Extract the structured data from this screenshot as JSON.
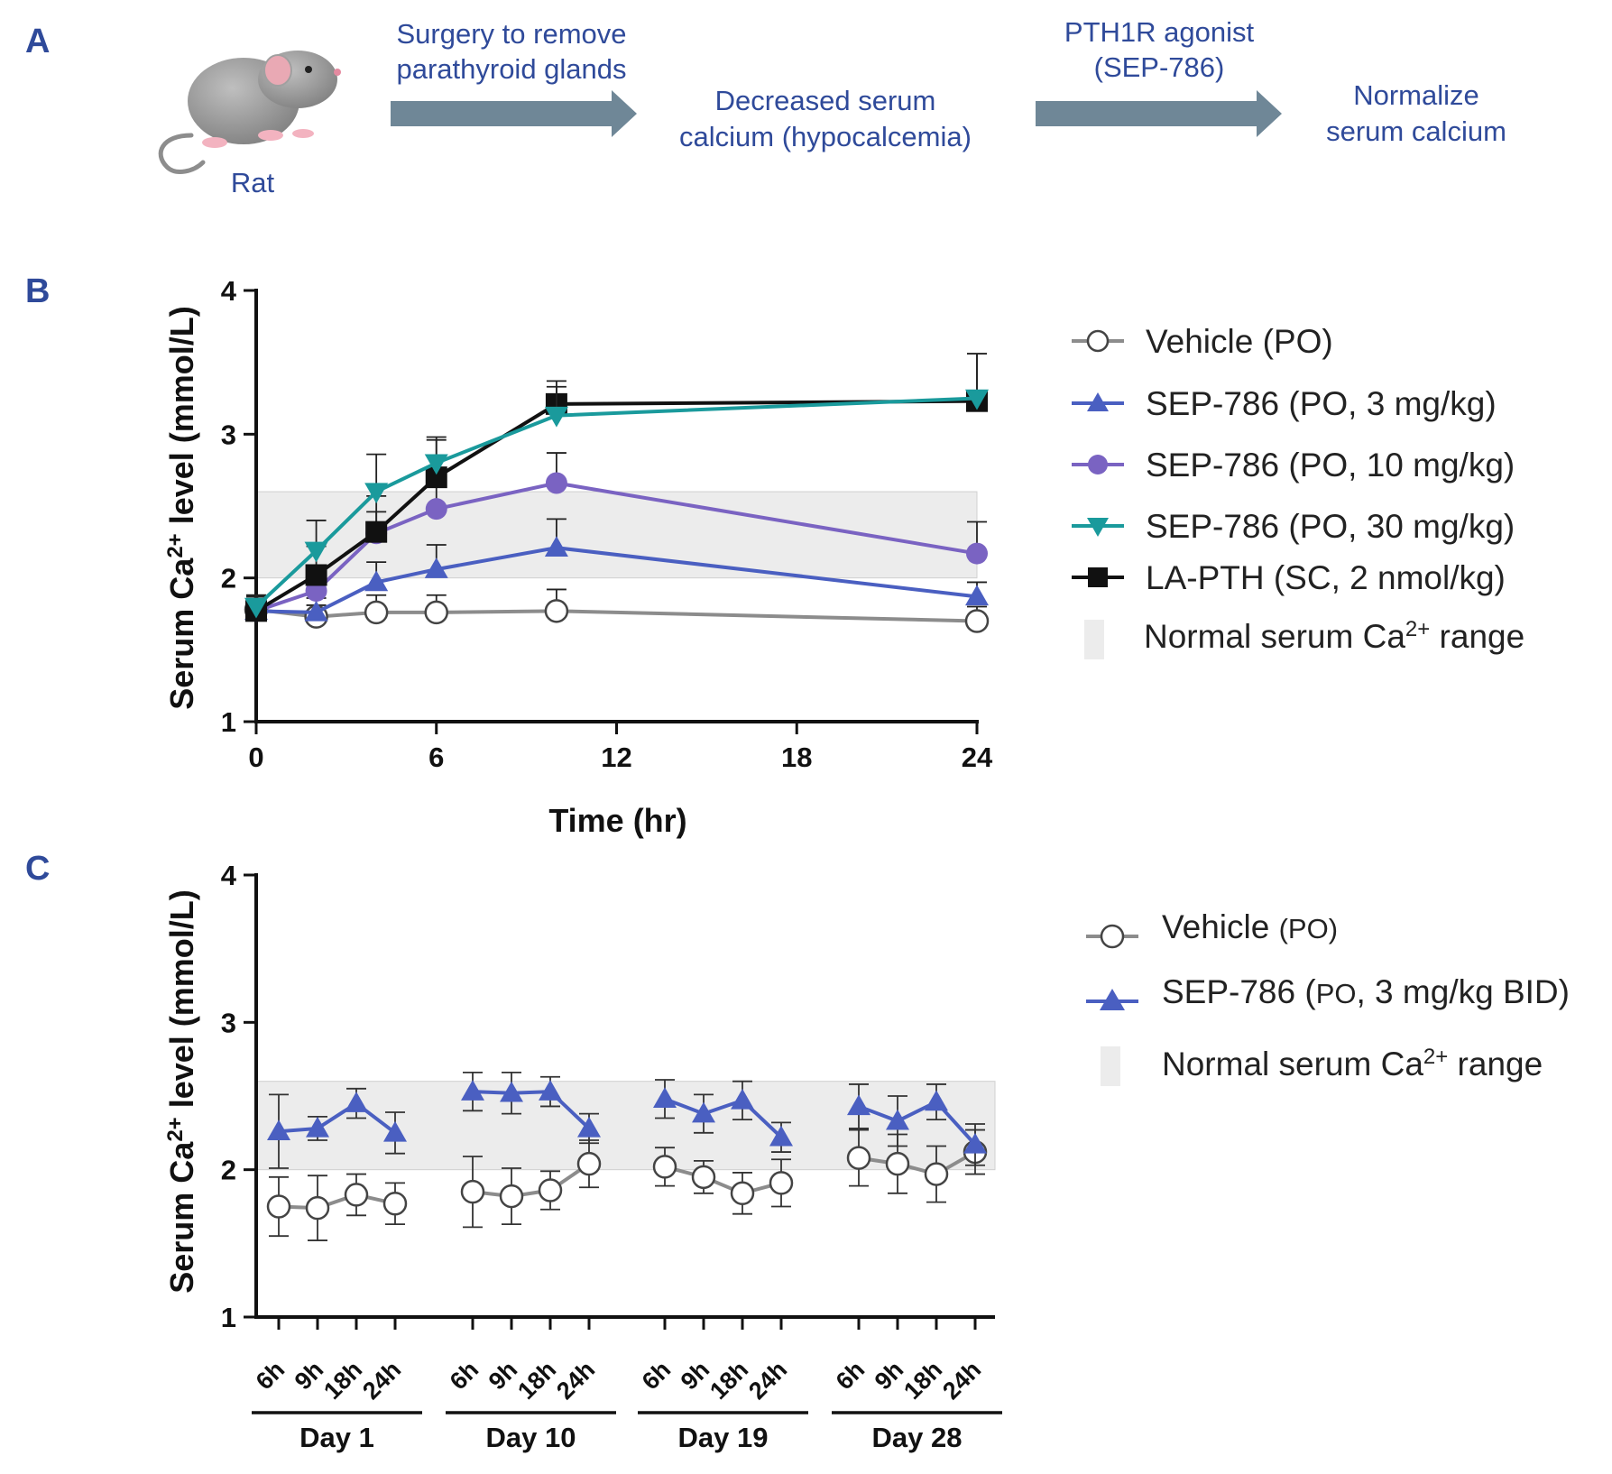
{
  "panel_a": {
    "letter": "A",
    "rat_label": "Rat",
    "step1_line1": "Surgery to remove",
    "step1_line2": "parathyroid glands",
    "outcome1_line1": "Decreased serum",
    "outcome1_line2": "calcium (hypocalcemia)",
    "step2_line1": "PTH1R agonist",
    "step2_line2": "(SEP-786)",
    "outcome2_line1": "Normalize",
    "outcome2_line2": "serum calcium"
  },
  "colors": {
    "vehicle": "#8c8c8c",
    "sep3": "#4a5fc1",
    "sep10": "#7a63c2",
    "sep30": "#1a9a9c",
    "lapth": "#111111",
    "band": "#ececec",
    "arrow": "#6f8797",
    "label_blue": "#2f4a9a"
  },
  "chart_data": [
    {
      "panel": "B",
      "type": "line",
      "title": "",
      "xlabel": "Time (hr)",
      "ylabel_prefix": "Serum Ca",
      "ylabel_sup": "2+",
      "ylabel_suffix": " level (mmol/L)",
      "xlim": [
        0,
        24
      ],
      "ylim": [
        1,
        4
      ],
      "xticks": [
        0,
        6,
        12,
        18,
        24
      ],
      "yticks": [
        1,
        2,
        3,
        4
      ],
      "normal_range": [
        2.0,
        2.6
      ],
      "x": [
        0,
        2,
        4,
        6,
        10,
        24
      ],
      "series": [
        {
          "key": "vehicle",
          "name": "Vehicle (PO)",
          "marker": "circle-open",
          "values": [
            1.78,
            1.73,
            1.76,
            1.76,
            1.77,
            1.7
          ],
          "err": [
            0.1,
            0.08,
            0.12,
            0.12,
            0.15,
            0.1
          ]
        },
        {
          "key": "sep3",
          "name": "SEP-786 (PO, 3 mg/kg)",
          "marker": "triangle-up",
          "values": [
            1.77,
            1.76,
            1.97,
            2.06,
            2.21,
            1.87
          ],
          "err": [
            0.1,
            0.1,
            0.14,
            0.17,
            0.2,
            0.1
          ]
        },
        {
          "key": "sep10",
          "name": "SEP-786 (PO, 10 mg/kg)",
          "marker": "circle",
          "values": [
            1.77,
            1.91,
            2.31,
            2.48,
            2.66,
            2.17
          ],
          "err": [
            0.1,
            0.12,
            0.15,
            0.2,
            0.21,
            0.22
          ]
        },
        {
          "key": "sep30",
          "name": "SEP-786 (PO, 30 mg/kg)",
          "marker": "triangle-down",
          "values": [
            1.8,
            2.19,
            2.6,
            2.8,
            3.13,
            3.25
          ],
          "err": [
            0.08,
            0.21,
            0.26,
            0.18,
            0.2,
            0.31
          ]
        },
        {
          "key": "lapth",
          "name": "LA-PTH (SC, 2 nmol/kg)",
          "marker": "square",
          "values": [
            1.77,
            2.02,
            2.32,
            2.7,
            3.21,
            3.23
          ],
          "err": [
            0.1,
            0.2,
            0.25,
            0.26,
            0.16,
            0.33
          ]
        }
      ],
      "band_legend_prefix": "Normal serum Ca",
      "band_legend_sup": "2+",
      "band_legend_suffix": " range"
    },
    {
      "panel": "C",
      "type": "line",
      "title": "",
      "xlabel": "",
      "ylabel_prefix": "Serum Ca",
      "ylabel_sup": "2+",
      "ylabel_suffix": " level (mmol/L)",
      "ylim": [
        1,
        4
      ],
      "yticks": [
        1,
        2,
        3,
        4
      ],
      "normal_range": [
        2.0,
        2.6
      ],
      "hour_labels": [
        "6h",
        "9h",
        "18h",
        "24h"
      ],
      "days": [
        {
          "label": "Day 1",
          "vehicle": [
            1.75,
            1.74,
            1.83,
            1.77
          ],
          "vehicle_err": [
            0.2,
            0.22,
            0.14,
            0.14
          ],
          "sep3": [
            2.26,
            2.28,
            2.45,
            2.25
          ],
          "sep3_err": [
            0.25,
            0.08,
            0.1,
            0.14
          ]
        },
        {
          "label": "Day 10",
          "vehicle": [
            1.85,
            1.82,
            1.86,
            2.04
          ],
          "vehicle_err": [
            0.24,
            0.19,
            0.13,
            0.16
          ],
          "sep3": [
            2.53,
            2.52,
            2.53,
            2.28
          ],
          "sep3_err": [
            0.13,
            0.14,
            0.1,
            0.1
          ]
        },
        {
          "label": "Day 19",
          "vehicle": [
            2.02,
            1.95,
            1.84,
            1.91
          ],
          "vehicle_err": [
            0.13,
            0.11,
            0.14,
            0.16
          ],
          "sep3": [
            2.48,
            2.38,
            2.47,
            2.22
          ],
          "sep3_err": [
            0.13,
            0.13,
            0.13,
            0.1
          ]
        },
        {
          "label": "Day 28",
          "vehicle": [
            2.08,
            2.04,
            1.97,
            2.12
          ],
          "vehicle_err": [
            0.19,
            0.2,
            0.19,
            0.15
          ],
          "sep3": [
            2.43,
            2.33,
            2.46,
            2.17
          ],
          "sep3_err": [
            0.15,
            0.17,
            0.12,
            0.14
          ]
        }
      ],
      "legend_vehicle_prefix": "Vehicle ",
      "legend_vehicle_suffix": "(PO)",
      "legend_sep3_prefix": "SEP-786 (",
      "legend_sep3_mid": "PO",
      "legend_sep3_suffix": ", 3 mg/kg BID)",
      "band_legend_prefix": "Normal serum Ca",
      "band_legend_sup": "2+",
      "band_legend_suffix": " range"
    }
  ]
}
